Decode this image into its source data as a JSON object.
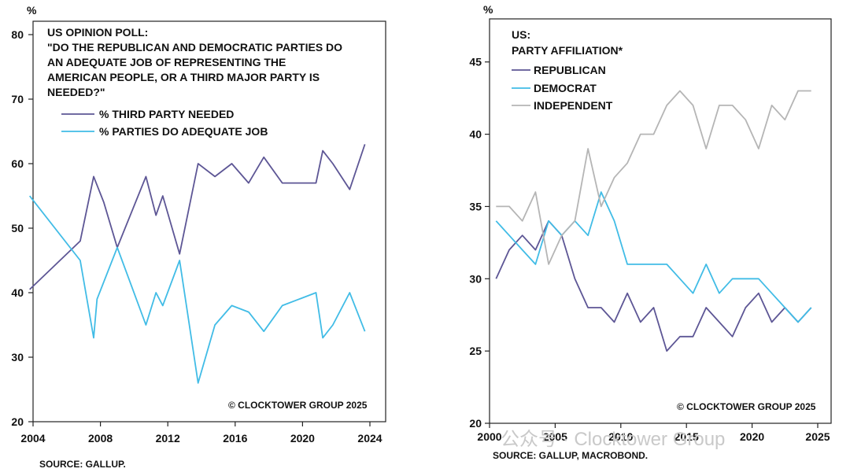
{
  "colors": {
    "purple": "#5d5695",
    "cyan": "#41bce6",
    "gray": "#b5b5b5"
  },
  "watermark": "公众号 · Clocktower Group",
  "charts": [
    {
      "unit_label": "%",
      "title_lines": [
        "US OPINION POLL:",
        "\"DO THE REPUBLICAN AND DEMOCRATIC PARTIES DO",
        "AN ADEQUATE JOB OF REPRESENTING THE",
        "AMERICAN PEOPLE, OR A THIRD MAJOR PARTY IS",
        "NEEDED?\""
      ],
      "copyright": "© CLOCKTOWER GROUP 2025",
      "source": "SOURCE: GALLUP."
    },
    {
      "unit_label": "%",
      "title_lines": [
        "US:",
        "PARTY AFFILIATION*"
      ],
      "copyright": "© CLOCKTOWER GROUP 2025",
      "source": "SOURCE: GALLUP, MACROBOND."
    }
  ],
  "chart_data": [
    {
      "type": "line",
      "title": "US OPINION POLL: \"DO THE REPUBLICAN AND DEMOCRATIC PARTIES DO AN ADEQUATE JOB OF REPRESENTING THE AMERICAN PEOPLE, OR A THIRD MAJOR PARTY IS NEEDED?\"",
      "ylabel": "%",
      "xlim": [
        2004,
        2024
      ],
      "ylim": [
        20,
        80
      ],
      "xticks": [
        2004,
        2008,
        2012,
        2016,
        2020,
        2024
      ],
      "yticks": [
        20,
        30,
        40,
        50,
        60,
        70,
        80
      ],
      "legend": "top-left",
      "series": [
        {
          "name": "% THIRD PARTY NEEDED",
          "color": "#5d5695",
          "x": [
            2003.8,
            2006.8,
            2007.6,
            2008.2,
            2009.0,
            2010.7,
            2011.3,
            2011.7,
            2012.7,
            2013.8,
            2014.8,
            2015.8,
            2016.8,
            2017.7,
            2018.8,
            2019.8,
            2020.8,
            2021.2,
            2021.8,
            2022.8,
            2023.7
          ],
          "y": [
            40.5,
            48,
            58,
            54,
            47,
            58,
            52,
            55,
            46,
            60,
            58,
            60,
            57,
            61,
            57,
            57,
            57,
            62,
            60,
            56,
            63
          ]
        },
        {
          "name": "% PARTIES DO ADEQUATE JOB",
          "color": "#41bce6",
          "x": [
            2003.8,
            2006.8,
            2007.6,
            2007.8,
            2009.0,
            2010.7,
            2011.3,
            2011.7,
            2012.7,
            2013.8,
            2014.8,
            2015.8,
            2016.8,
            2017.7,
            2018.8,
            2019.8,
            2020.8,
            2021.2,
            2021.8,
            2022.8,
            2023.7
          ],
          "y": [
            55,
            45,
            33,
            39,
            47,
            35,
            40,
            38,
            45,
            26,
            35,
            38,
            37,
            34,
            38,
            39,
            40,
            33,
            35,
            40,
            34
          ]
        }
      ]
    },
    {
      "type": "line",
      "title": "US: PARTY AFFILIATION*",
      "ylabel": "%",
      "xlim": [
        2000,
        2025
      ],
      "ylim": [
        20,
        47
      ],
      "xticks": [
        2000,
        2005,
        2010,
        2015,
        2020,
        2025
      ],
      "yticks": [
        20,
        25,
        30,
        35,
        40,
        45
      ],
      "legend": "top-left",
      "series": [
        {
          "name": "REPUBLICAN",
          "color": "#5d5695",
          "x": [
            2000.5,
            2001.5,
            2002.5,
            2003.5,
            2004.5,
            2005.5,
            2006.5,
            2007.5,
            2008.5,
            2009.5,
            2010.5,
            2011.5,
            2012.5,
            2013.5,
            2014.5,
            2015.5,
            2016.5,
            2017.5,
            2018.5,
            2019.5,
            2020.5,
            2021.5,
            2022.5,
            2023.5,
            2024.5
          ],
          "y": [
            30,
            32,
            33,
            32,
            34,
            33,
            30,
            28,
            28,
            27,
            29,
            27,
            28,
            25,
            26,
            26,
            28,
            27,
            26,
            28,
            29,
            27,
            28,
            27,
            28
          ]
        },
        {
          "name": "DEMOCRAT",
          "color": "#41bce6",
          "x": [
            2000.5,
            2001.5,
            2002.5,
            2003.5,
            2004.5,
            2005.5,
            2006.5,
            2007.5,
            2008.5,
            2009.5,
            2010.5,
            2011.5,
            2012.5,
            2013.5,
            2014.5,
            2015.5,
            2016.5,
            2017.5,
            2018.5,
            2019.5,
            2020.5,
            2021.5,
            2022.5,
            2023.5,
            2024.5
          ],
          "y": [
            34,
            33,
            32,
            31,
            34,
            33,
            34,
            33,
            36,
            34,
            31,
            31,
            31,
            31,
            30,
            29,
            31,
            29,
            30,
            30,
            30,
            29,
            28,
            27,
            28
          ]
        },
        {
          "name": "INDEPENDENT",
          "color": "#b5b5b5",
          "x": [
            2000.5,
            2001.5,
            2002.5,
            2003.5,
            2004.5,
            2005.5,
            2006.5,
            2007.5,
            2008.5,
            2009.5,
            2010.5,
            2011.5,
            2012.5,
            2013.5,
            2014.5,
            2015.5,
            2016.5,
            2017.5,
            2018.5,
            2019.5,
            2020.5,
            2021.5,
            2022.5,
            2023.5,
            2024.5
          ],
          "y": [
            35,
            35,
            34,
            36,
            31,
            33,
            34,
            39,
            35,
            37,
            38,
            40,
            40,
            42,
            43,
            42,
            39,
            42,
            42,
            41,
            39,
            42,
            41,
            43,
            43
          ]
        }
      ]
    }
  ]
}
